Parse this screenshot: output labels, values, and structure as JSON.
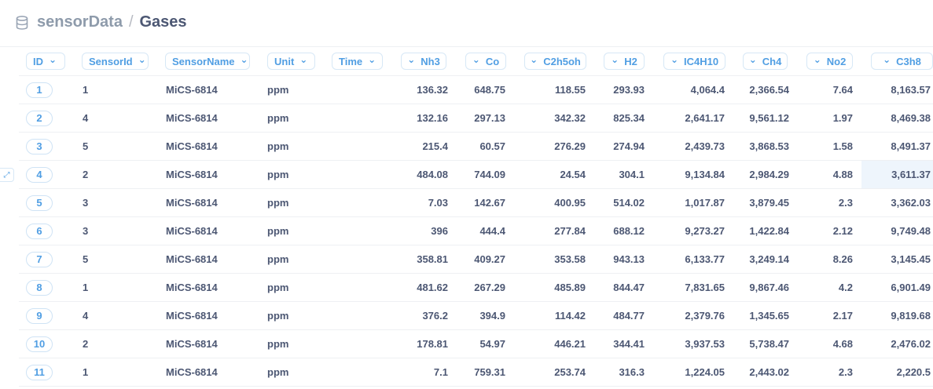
{
  "breadcrumb": {
    "database": "sensorData",
    "separator": "/",
    "table": "Gases"
  },
  "columns": [
    "ID",
    "SensorId",
    "SensorName",
    "Unit",
    "Time",
    "Nh3",
    "Co",
    "C2h5oh",
    "H2",
    "IC4H10",
    "Ch4",
    "No2",
    "C3h8"
  ],
  "rows": [
    [
      "1",
      "1",
      "MiCS-6814",
      "ppm",
      "",
      "136.32",
      "648.75",
      "118.55",
      "293.93",
      "4,064.4",
      "2,366.54",
      "7.64",
      "8,163.57"
    ],
    [
      "2",
      "4",
      "MiCS-6814",
      "ppm",
      "",
      "132.16",
      "297.13",
      "342.32",
      "825.34",
      "2,641.17",
      "9,561.12",
      "1.97",
      "8,469.38"
    ],
    [
      "3",
      "5",
      "MiCS-6814",
      "ppm",
      "",
      "215.4",
      "60.57",
      "276.29",
      "274.94",
      "2,439.73",
      "3,868.53",
      "1.58",
      "8,491.37"
    ],
    [
      "4",
      "2",
      "MiCS-6814",
      "ppm",
      "",
      "484.08",
      "744.09",
      "24.54",
      "304.1",
      "9,134.84",
      "2,984.29",
      "4.88",
      "3,611.37"
    ],
    [
      "5",
      "3",
      "MiCS-6814",
      "ppm",
      "",
      "7.03",
      "142.67",
      "400.95",
      "514.02",
      "1,017.87",
      "3,879.45",
      "2.3",
      "3,362.03"
    ],
    [
      "6",
      "3",
      "MiCS-6814",
      "ppm",
      "",
      "396",
      "444.4",
      "277.84",
      "688.12",
      "9,273.27",
      "1,422.84",
      "2.12",
      "9,749.48"
    ],
    [
      "7",
      "5",
      "MiCS-6814",
      "ppm",
      "",
      "358.81",
      "409.27",
      "353.58",
      "943.13",
      "6,133.77",
      "3,249.14",
      "8.26",
      "3,145.45"
    ],
    [
      "8",
      "1",
      "MiCS-6814",
      "ppm",
      "",
      "481.62",
      "267.29",
      "485.89",
      "844.47",
      "7,831.65",
      "9,867.46",
      "4.2",
      "6,901.49"
    ],
    [
      "9",
      "4",
      "MiCS-6814",
      "ppm",
      "",
      "376.2",
      "394.9",
      "114.42",
      "484.77",
      "2,379.76",
      "1,345.65",
      "2.17",
      "9,819.68"
    ],
    [
      "10",
      "2",
      "MiCS-6814",
      "ppm",
      "",
      "178.81",
      "54.97",
      "446.21",
      "344.41",
      "3,937.53",
      "5,738.47",
      "4.68",
      "2,476.02"
    ],
    [
      "11",
      "1",
      "MiCS-6814",
      "ppm",
      "",
      "7.1",
      "759.31",
      "253.74",
      "316.3",
      "1,224.05",
      "2,443.02",
      "2.3",
      "2,220.5"
    ]
  ],
  "highlighted_cell": {
    "row": 4,
    "column": "C3h8"
  },
  "icons": {
    "database": "database-icon",
    "sort": "chevron-down-icon",
    "expand": "expand-icon"
  },
  "colors": {
    "accent": "#509ee3",
    "text": "#4c5773",
    "muted": "#8e9bab",
    "border": "#eef0f3",
    "highlight": "#eef5fc"
  }
}
